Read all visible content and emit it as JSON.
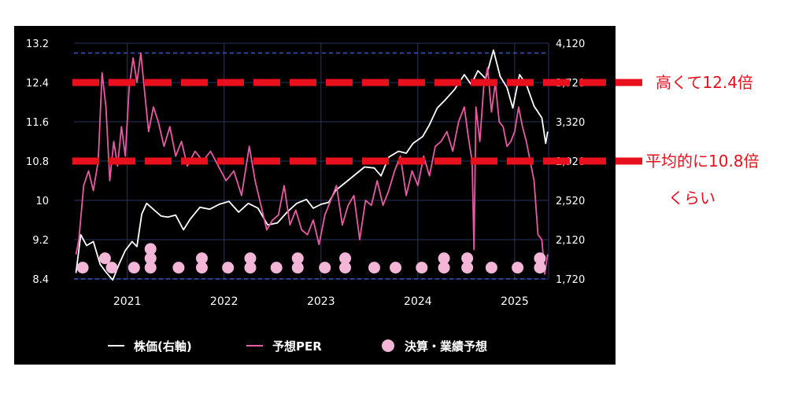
{
  "chart_data": {
    "type": "line",
    "title": "",
    "x_ticks": [
      "2021",
      "2022",
      "2023",
      "2024",
      "2025"
    ],
    "x_range": [
      2020.45,
      2025.35
    ],
    "y_left": {
      "ticks": [
        "8.4",
        "9.2",
        "10",
        "10.8",
        "11.6",
        "12.4",
        "13.2"
      ],
      "range": [
        8.4,
        13.2
      ]
    },
    "y_right": {
      "ticks": [
        "1,720",
        "2,120",
        "2,520",
        "2,920",
        "3,320",
        "3,720",
        "4,120"
      ],
      "range": [
        1720,
        4120
      ]
    },
    "grid": true,
    "dashed_reference_lines": [
      8.4,
      13.0
    ],
    "series": [
      {
        "name": "株価(右軸)",
        "axis": "right",
        "color": "#ffffff",
        "points": [
          [
            2020.47,
            1780
          ],
          [
            2020.52,
            2170
          ],
          [
            2020.58,
            2060
          ],
          [
            2020.65,
            2100
          ],
          [
            2020.72,
            1870
          ],
          [
            2020.78,
            1790
          ],
          [
            2020.85,
            1710
          ],
          [
            2020.92,
            1880
          ],
          [
            2020.98,
            2010
          ],
          [
            2021.05,
            2100
          ],
          [
            2021.1,
            2050
          ],
          [
            2021.15,
            2380
          ],
          [
            2021.2,
            2490
          ],
          [
            2021.28,
            2420
          ],
          [
            2021.35,
            2360
          ],
          [
            2021.42,
            2350
          ],
          [
            2021.5,
            2370
          ],
          [
            2021.58,
            2220
          ],
          [
            2021.65,
            2330
          ],
          [
            2021.75,
            2450
          ],
          [
            2021.85,
            2430
          ],
          [
            2021.95,
            2480
          ],
          [
            2022.05,
            2510
          ],
          [
            2022.15,
            2400
          ],
          [
            2022.25,
            2490
          ],
          [
            2022.35,
            2440
          ],
          [
            2022.45,
            2270
          ],
          [
            2022.55,
            2290
          ],
          [
            2022.65,
            2400
          ],
          [
            2022.75,
            2490
          ],
          [
            2022.85,
            2530
          ],
          [
            2022.92,
            2440
          ],
          [
            2023.0,
            2480
          ],
          [
            2023.08,
            2500
          ],
          [
            2023.15,
            2620
          ],
          [
            2023.25,
            2700
          ],
          [
            2023.35,
            2780
          ],
          [
            2023.45,
            2860
          ],
          [
            2023.55,
            2850
          ],
          [
            2023.62,
            2770
          ],
          [
            2023.7,
            2960
          ],
          [
            2023.8,
            3020
          ],
          [
            2023.88,
            3000
          ],
          [
            2023.95,
            3100
          ],
          [
            2024.05,
            3170
          ],
          [
            2024.12,
            3290
          ],
          [
            2024.2,
            3460
          ],
          [
            2024.28,
            3540
          ],
          [
            2024.38,
            3650
          ],
          [
            2024.48,
            3800
          ],
          [
            2024.55,
            3700
          ],
          [
            2024.62,
            3840
          ],
          [
            2024.7,
            3760
          ],
          [
            2024.78,
            4050
          ],
          [
            2024.85,
            3780
          ],
          [
            2024.92,
            3670
          ],
          [
            2024.98,
            3460
          ],
          [
            2025.05,
            3800
          ],
          [
            2025.12,
            3700
          ],
          [
            2025.2,
            3480
          ],
          [
            2025.28,
            3360
          ],
          [
            2025.32,
            3100
          ],
          [
            2025.34,
            3220
          ]
        ]
      },
      {
        "name": "予想PER",
        "axis": "left",
        "color": "#e85aa3",
        "points": [
          [
            2020.47,
            8.9
          ],
          [
            2020.5,
            9.2
          ],
          [
            2020.55,
            10.3
          ],
          [
            2020.6,
            10.6
          ],
          [
            2020.65,
            10.2
          ],
          [
            2020.7,
            10.8
          ],
          [
            2020.74,
            12.6
          ],
          [
            2020.78,
            11.9
          ],
          [
            2020.82,
            10.4
          ],
          [
            2020.86,
            11.2
          ],
          [
            2020.9,
            10.7
          ],
          [
            2020.94,
            11.5
          ],
          [
            2020.98,
            10.9
          ],
          [
            2021.02,
            12.3
          ],
          [
            2021.06,
            12.9
          ],
          [
            2021.1,
            12.4
          ],
          [
            2021.14,
            13.0
          ],
          [
            2021.18,
            12.2
          ],
          [
            2021.22,
            11.4
          ],
          [
            2021.27,
            11.9
          ],
          [
            2021.32,
            11.6
          ],
          [
            2021.38,
            11.1
          ],
          [
            2021.44,
            11.5
          ],
          [
            2021.5,
            10.9
          ],
          [
            2021.56,
            11.2
          ],
          [
            2021.62,
            10.7
          ],
          [
            2021.7,
            11.0
          ],
          [
            2021.78,
            10.8
          ],
          [
            2021.86,
            11.0
          ],
          [
            2021.94,
            10.7
          ],
          [
            2022.02,
            10.4
          ],
          [
            2022.1,
            10.6
          ],
          [
            2022.18,
            10.1
          ],
          [
            2022.26,
            11.1
          ],
          [
            2022.32,
            10.4
          ],
          [
            2022.38,
            9.9
          ],
          [
            2022.44,
            9.4
          ],
          [
            2022.5,
            9.6
          ],
          [
            2022.56,
            9.7
          ],
          [
            2022.62,
            10.3
          ],
          [
            2022.68,
            9.5
          ],
          [
            2022.74,
            9.8
          ],
          [
            2022.8,
            9.4
          ],
          [
            2022.86,
            9.3
          ],
          [
            2022.92,
            9.6
          ],
          [
            2022.98,
            9.1
          ],
          [
            2023.04,
            9.7
          ],
          [
            2023.1,
            10.0
          ],
          [
            2023.16,
            10.3
          ],
          [
            2023.22,
            9.5
          ],
          [
            2023.28,
            9.9
          ],
          [
            2023.34,
            10.1
          ],
          [
            2023.4,
            9.2
          ],
          [
            2023.46,
            10.0
          ],
          [
            2023.52,
            9.9
          ],
          [
            2023.58,
            10.4
          ],
          [
            2023.64,
            9.9
          ],
          [
            2023.7,
            10.2
          ],
          [
            2023.76,
            10.6
          ],
          [
            2023.82,
            10.9
          ],
          [
            2023.88,
            10.1
          ],
          [
            2023.94,
            10.6
          ],
          [
            2024.0,
            10.3
          ],
          [
            2024.06,
            10.9
          ],
          [
            2024.12,
            10.5
          ],
          [
            2024.18,
            11.1
          ],
          [
            2024.24,
            11.2
          ],
          [
            2024.3,
            11.4
          ],
          [
            2024.36,
            11.0
          ],
          [
            2024.42,
            11.6
          ],
          [
            2024.48,
            11.9
          ],
          [
            2024.52,
            11.3
          ],
          [
            2024.56,
            10.8
          ],
          [
            2024.58,
            9.0
          ],
          [
            2024.6,
            11.9
          ],
          [
            2024.64,
            11.2
          ],
          [
            2024.68,
            12.3
          ],
          [
            2024.72,
            12.7
          ],
          [
            2024.76,
            11.8
          ],
          [
            2024.8,
            12.4
          ],
          [
            2024.84,
            11.6
          ],
          [
            2024.88,
            11.5
          ],
          [
            2024.92,
            11.1
          ],
          [
            2024.96,
            11.2
          ],
          [
            2025.0,
            11.4
          ],
          [
            2025.04,
            11.9
          ],
          [
            2025.08,
            11.5
          ],
          [
            2025.12,
            11.2
          ],
          [
            2025.16,
            10.8
          ],
          [
            2025.2,
            10.4
          ],
          [
            2025.24,
            9.3
          ],
          [
            2025.28,
            9.2
          ],
          [
            2025.31,
            8.5
          ],
          [
            2025.34,
            8.9
          ]
        ]
      },
      {
        "name": "決算・業績予想",
        "axis": "left",
        "color": "#f4b6d6",
        "markers": [
          [
            2020.54,
            8.63
          ],
          [
            2020.84,
            8.63
          ],
          [
            2020.77,
            8.82
          ],
          [
            2021.07,
            8.63
          ],
          [
            2021.24,
            8.63
          ],
          [
            2021.24,
            8.82
          ],
          [
            2021.24,
            9.01
          ],
          [
            2021.53,
            8.63
          ],
          [
            2021.77,
            8.63
          ],
          [
            2021.77,
            8.82
          ],
          [
            2022.04,
            8.63
          ],
          [
            2022.27,
            8.63
          ],
          [
            2022.27,
            8.82
          ],
          [
            2022.54,
            8.63
          ],
          [
            2022.76,
            8.63
          ],
          [
            2022.76,
            8.82
          ],
          [
            2023.04,
            8.63
          ],
          [
            2023.25,
            8.63
          ],
          [
            2023.25,
            8.82
          ],
          [
            2023.55,
            8.63
          ],
          [
            2023.77,
            8.63
          ],
          [
            2024.04,
            8.63
          ],
          [
            2024.27,
            8.63
          ],
          [
            2024.27,
            8.82
          ],
          [
            2024.51,
            8.63
          ],
          [
            2024.51,
            8.82
          ],
          [
            2024.76,
            8.63
          ],
          [
            2025.03,
            8.63
          ],
          [
            2025.26,
            8.63
          ],
          [
            2025.26,
            8.82
          ]
        ]
      }
    ],
    "annotation_lines": [
      {
        "y": 12.4,
        "label": "高くて12.4倍"
      },
      {
        "y": 10.8,
        "label": "平均的に10.8倍",
        "label_line2": "くらい"
      }
    ],
    "legend": {
      "position": "bottom",
      "items": [
        "株価(右軸)",
        "予想PER",
        "決算・業績予想"
      ]
    }
  },
  "colors": {
    "background": "#000000",
    "grid": "#2d3460",
    "dashed_ref": "#3b56c7",
    "annotation": "#e8101c"
  }
}
